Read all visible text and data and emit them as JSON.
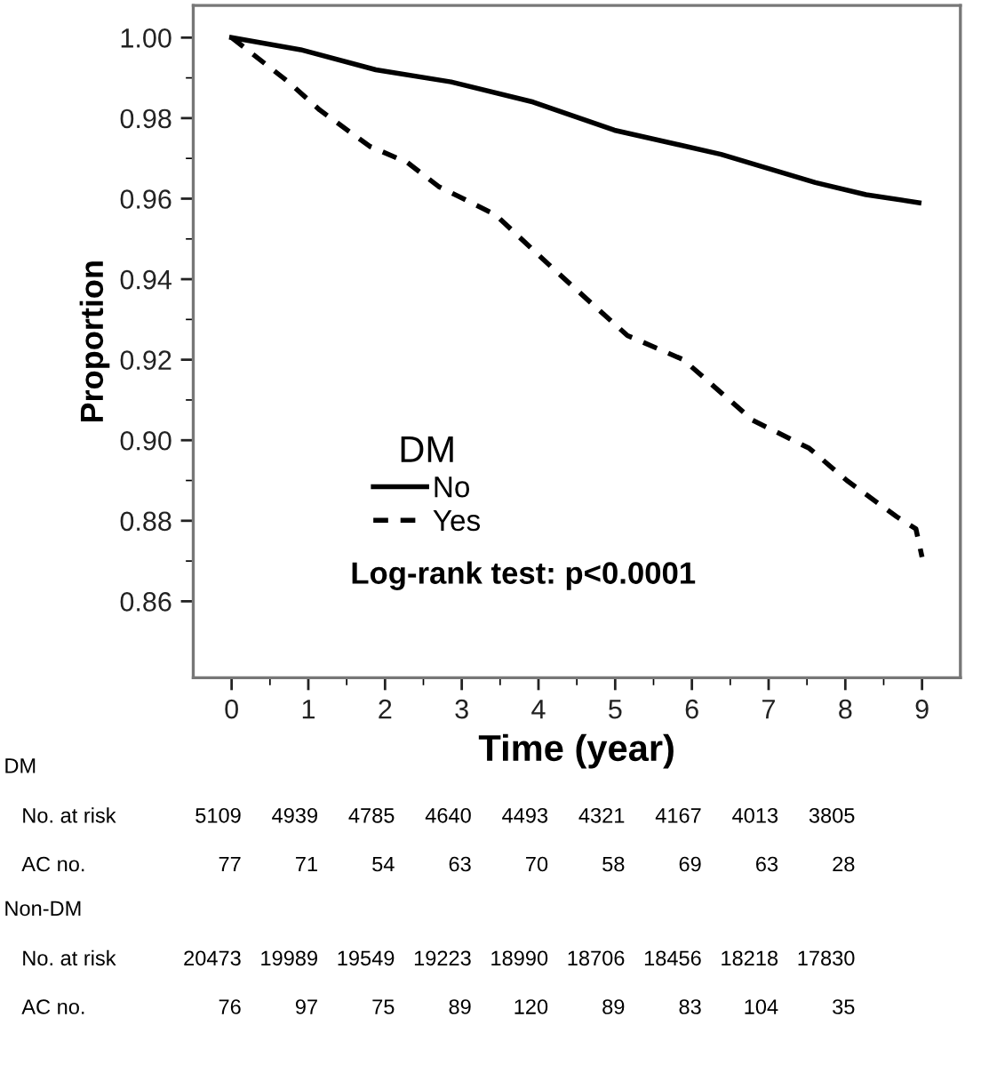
{
  "chart_data": {
    "type": "line",
    "xlabel": "Time (year)",
    "ylabel": "Proportion",
    "legend_title": "DM",
    "xlim": [
      -0.5,
      9.5
    ],
    "xticks": [
      0,
      1,
      2,
      3,
      4,
      5,
      6,
      7,
      8,
      9
    ],
    "ylim": [
      0.841,
      1.008
    ],
    "yticks": [
      {
        "value": 0.86,
        "label": "0.86"
      },
      {
        "value": 0.88,
        "label": "0.88"
      },
      {
        "value": 0.9,
        "label": "0.90"
      },
      {
        "value": 0.92,
        "label": "0.92"
      },
      {
        "value": 0.94,
        "label": "0.94"
      },
      {
        "value": 0.96,
        "label": "0.96"
      },
      {
        "value": 0.98,
        "label": "0.98"
      },
      {
        "value": 1.0,
        "label": "1.00"
      }
    ],
    "grid": false,
    "legend": "lower left",
    "series": [
      {
        "name": "No",
        "color": "#000000",
        "line_style": "solid",
        "x": [
          0,
          0.9,
          1.88,
          2.86,
          3.93,
          4.99,
          6.38,
          7.61,
          8.27,
          8.96
        ],
        "values": [
          1.0,
          0.997,
          0.992,
          0.989,
          0.984,
          0.977,
          0.971,
          0.964,
          0.961,
          0.959
        ]
      },
      {
        "name": "Yes",
        "color": "#000000",
        "line_style": "dashed",
        "x": [
          0,
          0.74,
          1.15,
          1.8,
          2.29,
          2.7,
          3.44,
          4.17,
          4.75,
          5.16,
          5.89,
          6.79,
          7.53,
          8.02,
          8.67,
          8.92,
          9.0
        ],
        "values": [
          1.0,
          0.989,
          0.982,
          0.973,
          0.969,
          0.963,
          0.956,
          0.943,
          0.933,
          0.926,
          0.92,
          0.905,
          0.898,
          0.89,
          0.881,
          0.878,
          0.871
        ]
      }
    ],
    "annotations": [
      "Log-rank test: p<0.0001",
      "DM",
      "No. at risk",
      "5109",
      "4939",
      "4785",
      "4640",
      "4493",
      "4321",
      "4167",
      "4013",
      "3805",
      "AC no.",
      "77",
      "71",
      "54",
      "63",
      "70",
      "58",
      "69",
      "63",
      "28",
      "Non-DM",
      "No. at risk",
      "20473",
      "19989",
      "19549",
      "19223",
      "18990",
      "18706",
      "18456",
      "18218",
      "17830",
      "AC no.",
      "76",
      "97",
      "75",
      "89",
      "120",
      "89",
      "83",
      "104",
      "35"
    ]
  }
}
